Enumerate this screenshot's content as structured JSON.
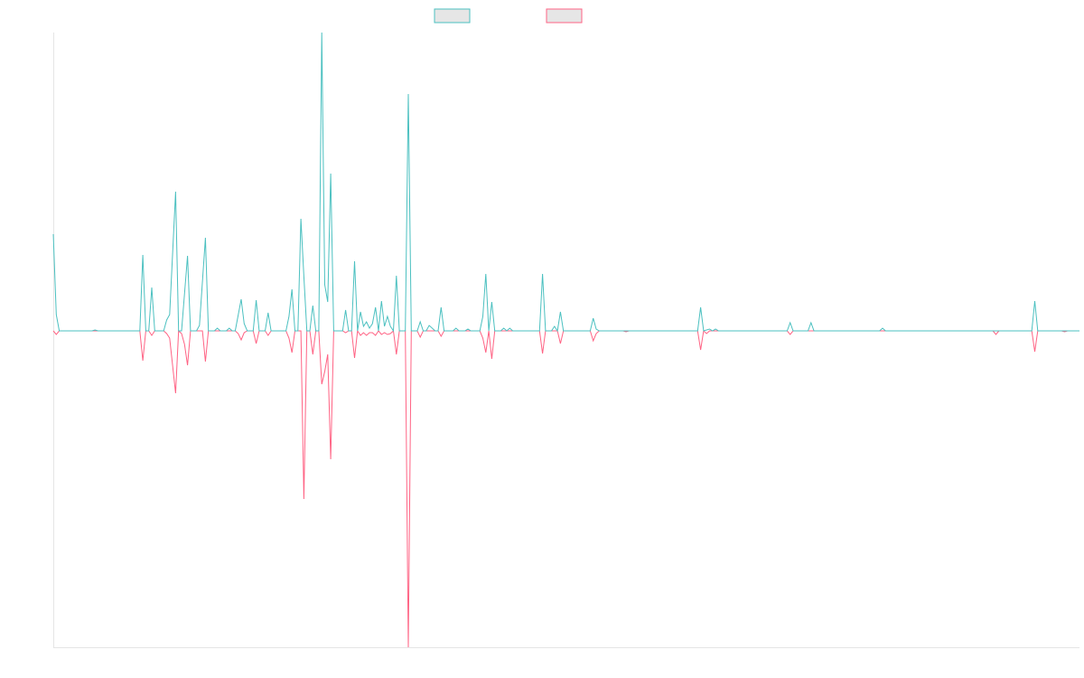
{
  "chart_data": {
    "type": "line",
    "title": "",
    "xlabel": "",
    "ylabel": "",
    "xlim": [
      0,
      344
    ],
    "ylim": [
      -350,
      330
    ],
    "grid": false,
    "legend_placement": "top",
    "series": [
      {
        "color": "#4bc0c0",
        "legend_fill": "#e6e6e6",
        "x": [
          0,
          1,
          2,
          13,
          14,
          15,
          29,
          30,
          31,
          32,
          33,
          34,
          37,
          38,
          39,
          41,
          42,
          43,
          45,
          46,
          48,
          49,
          51,
          52,
          54,
          55,
          56,
          58,
          59,
          60,
          61,
          63,
          64,
          65,
          67,
          68,
          69,
          71,
          72,
          73,
          78,
          79,
          80,
          81,
          82,
          83,
          84,
          85,
          86,
          87,
          88,
          89,
          90,
          91,
          92,
          93,
          94,
          97,
          98,
          99,
          100,
          101,
          102,
          103,
          104,
          105,
          106,
          107,
          108,
          109,
          110,
          111,
          112,
          113,
          114,
          115,
          116,
          118,
          119,
          120,
          122,
          123,
          124,
          125,
          126,
          127,
          128,
          129,
          130,
          131,
          134,
          135,
          136,
          138,
          139,
          140,
          143,
          144,
          145,
          146,
          147,
          148,
          150,
          151,
          152,
          153,
          154,
          163,
          164,
          165,
          167,
          168,
          169,
          170,
          171,
          180,
          181,
          182,
          183,
          216,
          217,
          218,
          220,
          221,
          222,
          223,
          246,
          247,
          248,
          253,
          254,
          255,
          277,
          278,
          279,
          328,
          329,
          330,
          344
        ],
        "y": [
          107,
          18,
          0,
          0,
          1,
          0,
          0,
          84,
          0,
          0,
          48,
          0,
          0,
          12,
          18,
          154,
          0,
          0,
          83,
          0,
          0,
          6,
          103,
          0,
          0,
          3,
          0,
          0,
          3,
          0,
          0,
          35,
          8,
          0,
          0,
          34,
          0,
          0,
          20,
          0,
          0,
          16,
          46,
          0,
          0,
          124,
          60,
          0,
          0,
          28,
          0,
          0,
          330,
          51,
          32,
          174,
          0,
          0,
          23,
          0,
          0,
          77,
          0,
          21,
          5,
          10,
          3,
          8,
          26,
          0,
          33,
          5,
          16,
          5,
          0,
          61,
          0,
          0,
          262,
          0,
          0,
          10,
          0,
          0,
          6,
          3,
          0,
          0,
          26,
          0,
          0,
          3,
          0,
          0,
          2,
          0,
          0,
          16,
          63,
          0,
          32,
          0,
          0,
          3,
          0,
          3,
          0,
          0,
          63,
          0,
          0,
          5,
          0,
          21,
          0,
          0,
          14,
          2,
          0,
          0,
          26,
          0,
          2,
          0,
          2,
          0,
          0,
          9,
          0,
          0,
          9,
          0,
          0,
          3,
          0,
          0,
          33,
          0,
          0
        ]
      },
      {
        "color": "#ff6384",
        "legend_fill": "#e6e6e6",
        "x": [
          0,
          1,
          2,
          29,
          30,
          31,
          32,
          33,
          34,
          37,
          38,
          39,
          41,
          42,
          43,
          44,
          45,
          46,
          50,
          51,
          52,
          61,
          62,
          63,
          64,
          65,
          67,
          68,
          69,
          71,
          72,
          73,
          78,
          79,
          80,
          81,
          83,
          84,
          85,
          86,
          87,
          88,
          89,
          90,
          91,
          92,
          93,
          94,
          97,
          98,
          99,
          100,
          101,
          102,
          103,
          104,
          105,
          106,
          107,
          108,
          109,
          110,
          111,
          112,
          113,
          114,
          115,
          116,
          118,
          119,
          120,
          122,
          123,
          124,
          129,
          130,
          131,
          143,
          144,
          145,
          146,
          147,
          148,
          163,
          164,
          165,
          169,
          170,
          171,
          180,
          181,
          182,
          183,
          191,
          192,
          193,
          216,
          217,
          218,
          219,
          220,
          246,
          247,
          248,
          315,
          316,
          317,
          328,
          329,
          330,
          338,
          339,
          340,
          344
        ],
        "y": [
          0,
          -4,
          0,
          0,
          -33,
          0,
          0,
          -5,
          0,
          0,
          -3,
          -8,
          -69,
          0,
          -3,
          -15,
          -38,
          0,
          0,
          -34,
          0,
          0,
          -3,
          -10,
          -2,
          0,
          0,
          -14,
          0,
          0,
          -5,
          0,
          0,
          -8,
          -24,
          0,
          0,
          -186,
          0,
          0,
          -26,
          0,
          0,
          -59,
          -45,
          -26,
          -142,
          0,
          0,
          -2,
          0,
          0,
          -30,
          0,
          -5,
          -2,
          -5,
          -2,
          -2,
          -5,
          0,
          -4,
          -2,
          -4,
          -3,
          0,
          -26,
          0,
          0,
          -350,
          0,
          0,
          -7,
          0,
          0,
          -6,
          0,
          0,
          -8,
          -24,
          0,
          -31,
          0,
          0,
          -25,
          0,
          0,
          -14,
          0,
          0,
          -11,
          -3,
          0,
          0,
          -1,
          0,
          0,
          -21,
          0,
          -3,
          0,
          0,
          -4,
          0,
          0,
          -4,
          0,
          0,
          -23,
          0,
          0,
          -1,
          0,
          0
        ]
      }
    ]
  }
}
